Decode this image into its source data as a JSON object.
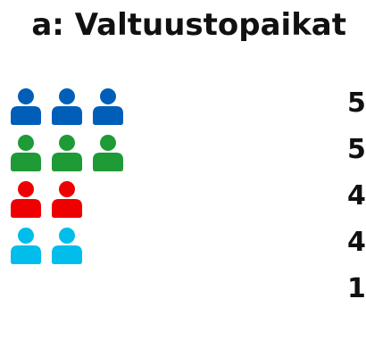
{
  "title": "a: Valtuustopaikat",
  "chart_data": {
    "type": "pictogram",
    "title": "a: Valtuustopaikat",
    "series": [
      {
        "value": 5,
        "label": "5",
        "icons_visible": 3,
        "color": "#005EB8"
      },
      {
        "value": 5,
        "label": "5",
        "icons_visible": 3,
        "color": "#1E9A36"
      },
      {
        "value": 4,
        "label": "4",
        "icons_visible": 2,
        "color": "#EE0000"
      },
      {
        "value": 4,
        "label": "4",
        "icons_visible": 2,
        "color": "#00BDEB"
      },
      {
        "value": 1,
        "label": "1",
        "icons_visible": 0,
        "color": "#111111"
      }
    ],
    "icon": "person-icon"
  }
}
